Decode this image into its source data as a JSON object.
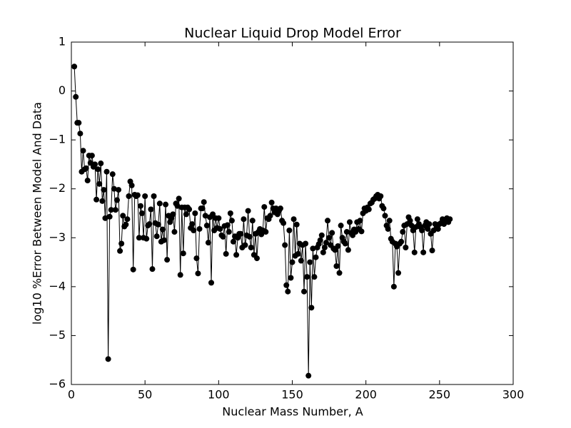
{
  "chart_data": {
    "type": "line",
    "title": "Nuclear Liquid Drop Model Error",
    "xlabel": "Nuclear Mass Number, A",
    "ylabel": "log10 %Error Between Model And Data",
    "color": "#000000",
    "x": [
      2,
      3,
      4,
      5,
      6,
      7,
      8,
      9,
      10,
      11,
      12,
      13,
      14,
      15,
      16,
      17,
      18,
      19,
      20,
      21,
      22,
      23,
      24,
      25,
      26,
      27,
      28,
      29,
      30,
      31,
      32,
      33,
      34,
      35,
      36,
      37,
      38,
      39,
      40,
      41,
      42,
      43,
      44,
      45,
      46,
      47,
      48,
      49,
      50,
      51,
      52,
      53,
      54,
      55,
      56,
      57,
      58,
      59,
      60,
      61,
      62,
      63,
      64,
      65,
      66,
      67,
      68,
      69,
      70,
      71,
      72,
      73,
      74,
      75,
      76,
      77,
      78,
      79,
      80,
      81,
      82,
      83,
      84,
      85,
      86,
      87,
      88,
      89,
      90,
      91,
      92,
      93,
      94,
      95,
      96,
      97,
      98,
      99,
      100,
      101,
      102,
      103,
      104,
      105,
      106,
      107,
      108,
      109,
      110,
      111,
      112,
      113,
      114,
      115,
      116,
      117,
      118,
      119,
      120,
      121,
      122,
      123,
      124,
      125,
      126,
      127,
      128,
      129,
      130,
      131,
      132,
      133,
      134,
      135,
      136,
      137,
      138,
      139,
      140,
      141,
      142,
      143,
      144,
      145,
      146,
      147,
      148,
      149,
      150,
      151,
      152,
      153,
      154,
      155,
      156,
      157,
      158,
      159,
      160,
      161,
      162,
      163,
      164,
      165,
      166,
      167,
      168,
      169,
      170,
      171,
      172,
      173,
      174,
      175,
      176,
      177,
      178,
      179,
      180,
      181,
      182,
      183,
      184,
      185,
      186,
      187,
      188,
      189,
      190,
      191,
      192,
      193,
      194,
      195,
      196,
      197,
      198,
      199,
      200,
      201,
      202,
      203,
      204,
      205,
      206,
      207,
      208,
      209,
      210,
      211,
      212,
      213,
      214,
      215,
      216,
      217,
      218,
      219,
      220,
      221,
      222,
      223,
      224,
      225,
      226,
      227,
      228,
      229,
      230,
      231,
      232,
      233,
      234,
      235,
      236,
      237,
      238,
      239,
      240,
      241,
      242,
      243,
      244,
      245,
      246,
      247,
      248,
      249,
      250,
      251,
      252,
      253,
      254,
      255,
      256,
      257
    ],
    "values": [
      0.5,
      -0.12,
      -0.65,
      -0.65,
      -0.87,
      -1.65,
      -1.22,
      -1.6,
      -1.58,
      -1.83,
      -1.32,
      -1.47,
      -1.32,
      -1.55,
      -1.5,
      -2.22,
      -1.6,
      -1.9,
      -1.48,
      -2.25,
      -2.02,
      -2.6,
      -1.65,
      -5.48,
      -2.57,
      -2.43,
      -1.7,
      -2.0,
      -2.43,
      -2.23,
      -2.02,
      -3.27,
      -3.12,
      -2.55,
      -2.77,
      -2.73,
      -2.62,
      -2.15,
      -1.85,
      -1.93,
      -3.65,
      -2.12,
      -2.15,
      -2.13,
      -3.0,
      -2.35,
      -2.5,
      -3.0,
      -2.15,
      -3.02,
      -2.75,
      -2.72,
      -2.42,
      -3.64,
      -2.15,
      -2.7,
      -2.97,
      -2.73,
      -2.3,
      -3.08,
      -2.83,
      -3.05,
      -2.32,
      -3.45,
      -2.55,
      -2.68,
      -2.6,
      -2.52,
      -2.88,
      -2.3,
      -2.35,
      -2.2,
      -3.76,
      -2.38,
      -3.32,
      -2.38,
      -2.52,
      -2.38,
      -2.42,
      -2.8,
      -2.72,
      -2.85,
      -2.5,
      -3.42,
      -3.73,
      -2.82,
      -2.4,
      -2.4,
      -2.27,
      -2.55,
      -2.75,
      -3.1,
      -2.58,
      -3.92,
      -2.52,
      -2.85,
      -2.6,
      -2.8,
      -2.6,
      -2.82,
      -2.95,
      -2.98,
      -2.76,
      -3.33,
      -2.74,
      -2.88,
      -2.5,
      -2.65,
      -3.08,
      -2.97,
      -3.35,
      -3.0,
      -2.92,
      -2.92,
      -3.2,
      -2.62,
      -3.15,
      -2.95,
      -2.45,
      -2.98,
      -3.2,
      -2.65,
      -3.35,
      -2.92,
      -3.42,
      -2.88,
      -2.82,
      -2.93,
      -2.85,
      -2.37,
      -2.88,
      -2.6,
      -2.62,
      -2.55,
      -2.28,
      -2.4,
      -2.48,
      -2.4,
      -2.52,
      -2.45,
      -2.4,
      -2.65,
      -2.7,
      -3.15,
      -3.97,
      -4.1,
      -2.85,
      -3.82,
      -3.5,
      -2.62,
      -3.37,
      -2.73,
      -3.33,
      -3.12,
      -3.47,
      -3.15,
      -4.1,
      -3.12,
      -3.8,
      -5.82,
      -3.5,
      -4.43,
      -3.22,
      -3.8,
      -3.4,
      -3.2,
      -3.13,
      -3.05,
      -2.95,
      -3.3,
      -3.2,
      -3.1,
      -2.65,
      -3.0,
      -3.15,
      -2.9,
      -3.22,
      -3.25,
      -3.58,
      -3.17,
      -3.72,
      -2.75,
      -3.0,
      -3.08,
      -3.12,
      -2.88,
      -3.25,
      -2.68,
      -2.9,
      -2.95,
      -2.83,
      -2.88,
      -2.68,
      -2.82,
      -2.65,
      -2.87,
      -2.5,
      -2.4,
      -2.45,
      -2.38,
      -2.42,
      -2.3,
      -2.28,
      -2.22,
      -2.2,
      -2.15,
      -2.12,
      -2.2,
      -2.15,
      -2.35,
      -2.4,
      -2.55,
      -2.75,
      -2.82,
      -2.65,
      -3.02,
      -3.08,
      -4.0,
      -3.12,
      -3.18,
      -3.72,
      -3.12,
      -3.08,
      -2.88,
      -2.75,
      -3.2,
      -2.72,
      -2.58,
      -2.65,
      -2.75,
      -2.85,
      -3.3,
      -2.78,
      -2.62,
      -2.72,
      -2.78,
      -2.85,
      -3.3,
      -2.75,
      -2.68,
      -2.82,
      -2.72,
      -2.92,
      -3.26,
      -2.85,
      -2.72,
      -2.78,
      -2.82,
      -2.72,
      -2.7,
      -2.62,
      -2.72,
      -2.65,
      -2.6,
      -2.68,
      -2.62
    ],
    "xlim": [
      0,
      300
    ],
    "xticks": [
      0,
      50,
      100,
      150,
      200,
      250,
      300
    ],
    "ylim": [
      -6,
      1
    ],
    "yticks": [
      {
        "value": -6,
        "label": "−6"
      },
      {
        "value": -5,
        "label": "−5"
      },
      {
        "value": -4,
        "label": "−4"
      },
      {
        "value": -3,
        "label": "−3"
      },
      {
        "value": -2,
        "label": "−2"
      },
      {
        "value": -1,
        "label": "−1"
      },
      0,
      1
    ],
    "grid": false
  }
}
